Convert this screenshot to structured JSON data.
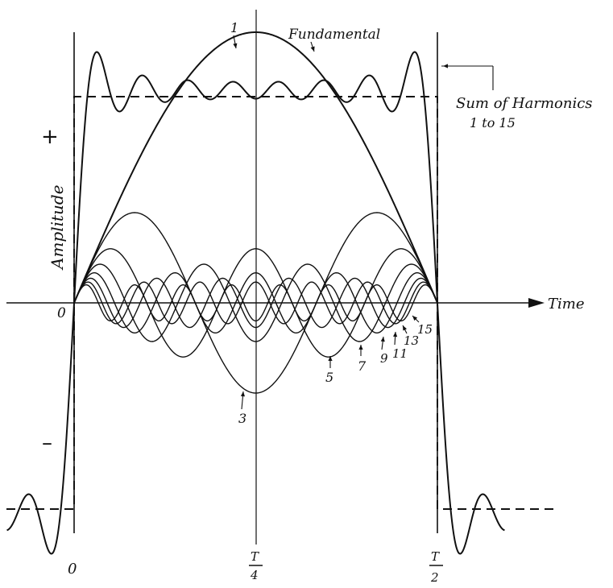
{
  "figure": {
    "labels": {
      "fundamental": "Fundamental",
      "sum_line1": "Sum of Harmonics",
      "sum_line2": "1 to 15",
      "amplitude": "Amplitude",
      "time": "Time",
      "plus": "+",
      "minus": "–",
      "origin": "0",
      "tick_zero": "0",
      "tick_quarter_num": "T",
      "tick_quarter_den": "4",
      "tick_half_num": "T",
      "tick_half_den": "2"
    },
    "harmonic_labels": [
      "1",
      "3",
      "5",
      "7",
      "9",
      "11",
      "13",
      "15"
    ]
  },
  "chart_data": {
    "type": "line",
    "x": {
      "label": "Time",
      "ticks": [
        "0",
        "T/4",
        "T/2"
      ]
    },
    "y": {
      "label": "Amplitude",
      "signs": [
        "+",
        "–"
      ]
    },
    "harmonics": [
      1,
      3,
      5,
      7,
      9,
      11,
      13,
      15
    ],
    "series": [
      {
        "name": "Fundamental",
        "harmonic": 1
      },
      {
        "name": "Sum of Harmonics 1 to 15",
        "harmonics": [
          1,
          3,
          5,
          7,
          9,
          11,
          13,
          15
        ]
      }
    ],
    "square_wave_dashed": true,
    "colors": {
      "ink": "#111111",
      "background": "#ffffff"
    }
  }
}
